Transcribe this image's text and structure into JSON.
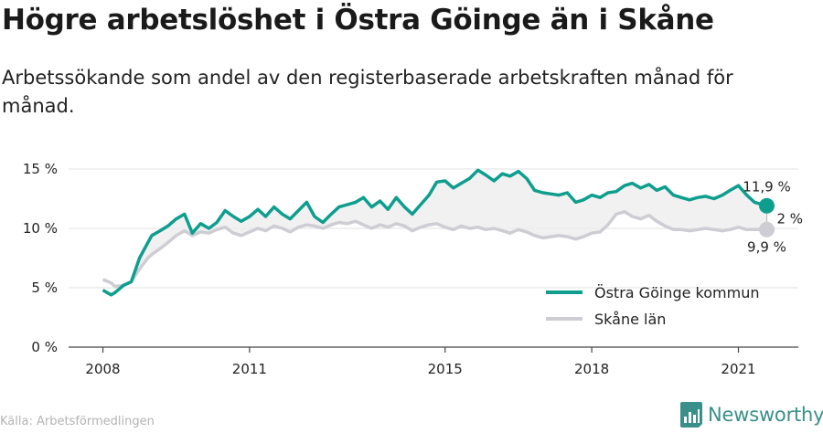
{
  "title": "Högre arbetslöshet i Östra Göinge än i Skåne",
  "subtitle": "Arbetssökande som andel av den registerbaserade arbetskraften månad för månad.",
  "source": "Källa: Arbetsförmedlingen",
  "brand": "Newsworthy",
  "colors": {
    "primary": "#0e9e8e",
    "secondary": "#cdcdd3",
    "fill": "#eeeeee",
    "axis": "#444444",
    "grid": "#e0e0e0"
  },
  "chart_data": {
    "type": "line",
    "title": "Högre arbetslöshet i Östra Göinge än i Skåne",
    "xlabel": "",
    "ylabel": "",
    "xlim": [
      2008,
      2021.8
    ],
    "ylim": [
      0,
      15
    ],
    "y_ticks": [
      "0 %",
      "5 %",
      "10 %",
      "15 %"
    ],
    "y_tick_values": [
      0,
      5,
      10,
      15
    ],
    "x_ticks": [
      "2008",
      "2011",
      "2015",
      "2018",
      "2021"
    ],
    "x_tick_values": [
      2008,
      2011,
      2015,
      2018,
      2021
    ],
    "grid": true,
    "legend": "bottom-right",
    "gap_label": "2 %",
    "end_labels": [
      "11,9 %",
      "9,9 %"
    ],
    "series": [
      {
        "name": "Östra Göinge kommun",
        "x": [
          2008,
          2008.17,
          2008.25,
          2008.42,
          2008.58,
          2008.75,
          2008.92,
          2009.0,
          2009.17,
          2009.33,
          2009.5,
          2009.67,
          2009.83,
          2010.0,
          2010.17,
          2010.33,
          2010.5,
          2010.67,
          2010.83,
          2011.0,
          2011.17,
          2011.33,
          2011.5,
          2011.67,
          2011.83,
          2012.0,
          2012.17,
          2012.33,
          2012.5,
          2012.67,
          2012.83,
          2013.0,
          2013.17,
          2013.33,
          2013.5,
          2013.67,
          2013.83,
          2014.0,
          2014.17,
          2014.33,
          2014.5,
          2014.67,
          2014.83,
          2015.0,
          2015.17,
          2015.33,
          2015.5,
          2015.67,
          2015.83,
          2016.0,
          2016.17,
          2016.33,
          2016.5,
          2016.67,
          2016.83,
          2017.0,
          2017.17,
          2017.33,
          2017.5,
          2017.67,
          2017.83,
          2018.0,
          2018.17,
          2018.33,
          2018.5,
          2018.67,
          2018.83,
          2019.0,
          2019.17,
          2019.33,
          2019.5,
          2019.67,
          2019.83,
          2020.0,
          2020.17,
          2020.33,
          2020.5,
          2020.67,
          2020.83,
          2021.0,
          2021.17,
          2021.33,
          2021.58
        ],
        "values": [
          4.8,
          4.4,
          4.6,
          5.2,
          5.5,
          7.5,
          8.8,
          9.4,
          9.8,
          10.2,
          10.8,
          11.2,
          9.6,
          10.4,
          10.0,
          10.5,
          11.5,
          11.0,
          10.6,
          11.0,
          11.6,
          11.0,
          11.8,
          11.2,
          10.8,
          11.5,
          12.2,
          11.0,
          10.5,
          11.2,
          11.8,
          12.0,
          12.2,
          12.6,
          11.8,
          12.3,
          11.6,
          12.6,
          11.8,
          11.2,
          12.0,
          12.8,
          13.9,
          14.0,
          13.4,
          13.8,
          14.2,
          14.9,
          14.5,
          14.0,
          14.6,
          14.4,
          14.8,
          14.2,
          13.2,
          13.0,
          12.9,
          12.8,
          13.0,
          12.2,
          12.4,
          12.8,
          12.6,
          13.0,
          13.1,
          13.6,
          13.8,
          13.4,
          13.7,
          13.2,
          13.5,
          12.8,
          12.6,
          12.4,
          12.6,
          12.7,
          12.5,
          12.8,
          13.2,
          13.6,
          12.8,
          12.2,
          11.9
        ]
      },
      {
        "name": "Skåne län",
        "x": [
          2008,
          2008.17,
          2008.25,
          2008.42,
          2008.58,
          2008.75,
          2008.92,
          2009.0,
          2009.17,
          2009.33,
          2009.5,
          2009.67,
          2009.83,
          2010.0,
          2010.17,
          2010.33,
          2010.5,
          2010.67,
          2010.83,
          2011.0,
          2011.17,
          2011.33,
          2011.5,
          2011.67,
          2011.83,
          2012.0,
          2012.17,
          2012.33,
          2012.5,
          2012.67,
          2012.83,
          2013.0,
          2013.17,
          2013.33,
          2013.5,
          2013.67,
          2013.83,
          2014.0,
          2014.17,
          2014.33,
          2014.5,
          2014.67,
          2014.83,
          2015.0,
          2015.17,
          2015.33,
          2015.5,
          2015.67,
          2015.83,
          2016.0,
          2016.17,
          2016.33,
          2016.5,
          2016.67,
          2016.83,
          2017.0,
          2017.17,
          2017.33,
          2017.5,
          2017.67,
          2017.83,
          2018.0,
          2018.17,
          2018.33,
          2018.5,
          2018.67,
          2018.83,
          2019.0,
          2019.17,
          2019.33,
          2019.5,
          2019.67,
          2019.83,
          2020.0,
          2020.17,
          2020.33,
          2020.5,
          2020.67,
          2020.83,
          2021.0,
          2021.17,
          2021.33,
          2021.58
        ],
        "values": [
          5.7,
          5.4,
          5.1,
          5.2,
          5.5,
          6.6,
          7.5,
          7.8,
          8.3,
          8.8,
          9.4,
          9.8,
          9.4,
          9.7,
          9.6,
          9.9,
          10.1,
          9.6,
          9.4,
          9.7,
          10.0,
          9.8,
          10.2,
          10.0,
          9.7,
          10.1,
          10.3,
          10.2,
          10.0,
          10.3,
          10.5,
          10.4,
          10.6,
          10.3,
          10.0,
          10.3,
          10.1,
          10.4,
          10.2,
          9.8,
          10.1,
          10.3,
          10.4,
          10.1,
          9.9,
          10.2,
          10.0,
          10.1,
          9.9,
          10.0,
          9.8,
          9.6,
          9.9,
          9.7,
          9.4,
          9.2,
          9.3,
          9.4,
          9.3,
          9.1,
          9.3,
          9.6,
          9.7,
          10.3,
          11.2,
          11.4,
          11.0,
          10.8,
          11.1,
          10.6,
          10.2,
          9.9,
          9.9,
          9.8,
          9.9,
          10.0,
          9.9,
          9.8,
          9.9,
          10.1,
          9.9,
          9.9,
          9.9
        ]
      }
    ]
  }
}
